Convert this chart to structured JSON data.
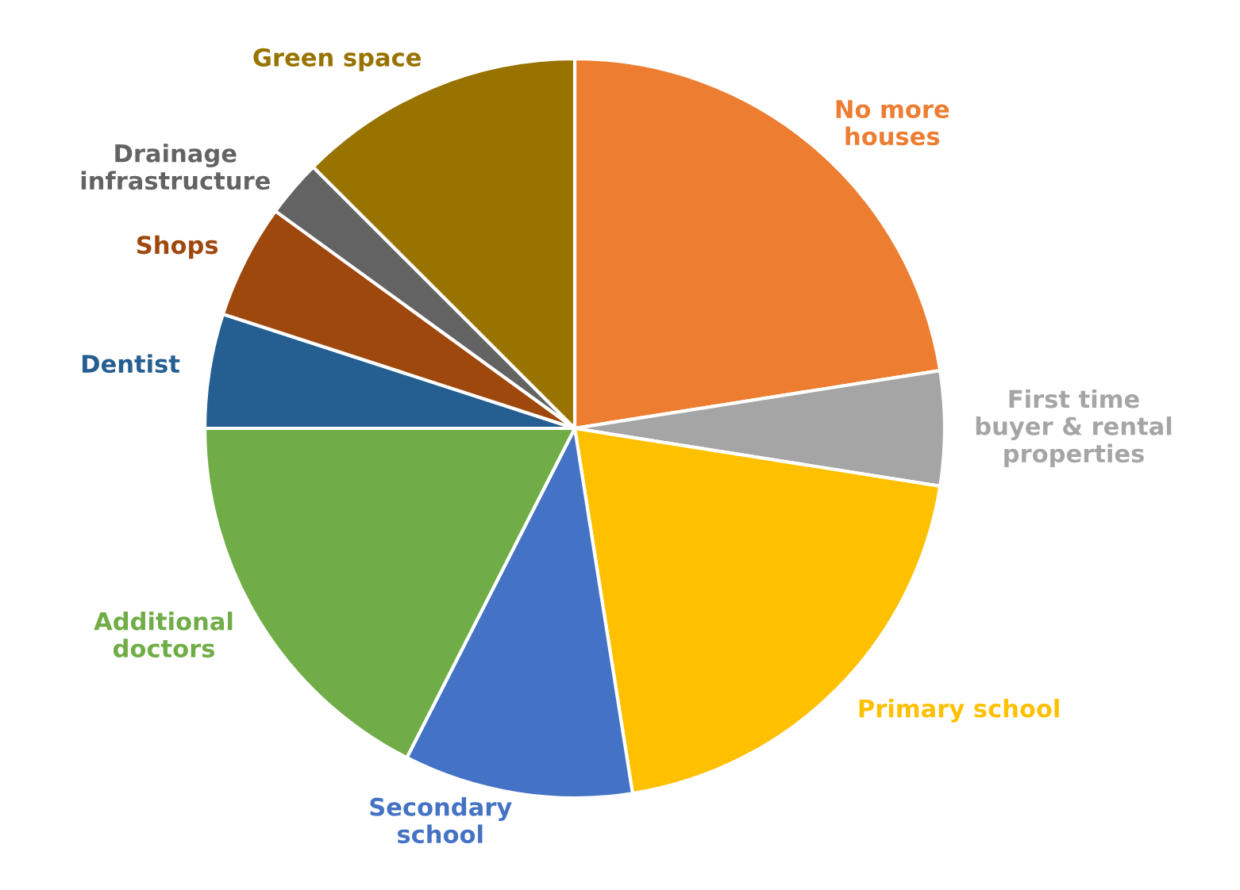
{
  "chart_data": {
    "type": "pie",
    "categories": [
      "No more\nhouses",
      "First time\nbuyer & rental\nproperties",
      "Primary school",
      "Secondary\nschool",
      "Additional\ndoctors",
      "Dentist",
      "Shops",
      "Drainage\ninfrastructure",
      "Green space"
    ],
    "values": [
      22.5,
      5,
      20,
      10,
      17.5,
      5,
      5,
      2.5,
      12.5
    ],
    "colors": [
      "#ed7d31",
      "#a5a5a5",
      "#ffc000",
      "#4472c4",
      "#70ad47",
      "#255e91",
      "#9e480e",
      "#636363",
      "#997300"
    ],
    "legend": false
  }
}
